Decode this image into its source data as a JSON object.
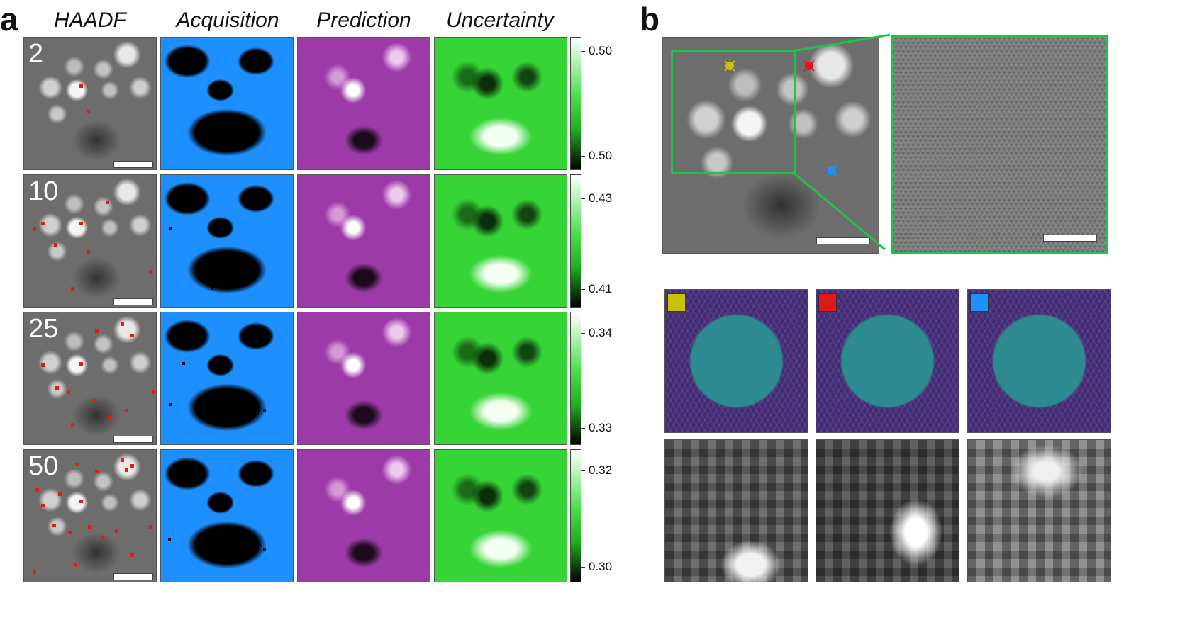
{
  "panel_a": {
    "letter": "a",
    "columns": [
      "HAADF",
      "Acquisition",
      "Prediction",
      "Uncertainty"
    ],
    "rows": [
      {
        "label": "2",
        "colorbar": {
          "max": "0.50",
          "min": "0.50"
        }
      },
      {
        "label": "10",
        "colorbar": {
          "max": "0.43",
          "min": "0.41"
        }
      },
      {
        "label": "25",
        "colorbar": {
          "max": "0.34",
          "min": "0.33"
        }
      },
      {
        "label": "50",
        "colorbar": {
          "max": "0.32",
          "min": "0.30"
        }
      }
    ]
  },
  "panel_b": {
    "letter": "b",
    "marker_colors": {
      "yellow": "#c8c200",
      "red": "#e01818",
      "blue": "#1e90ff"
    },
    "frame_color": "#1ec34a"
  }
}
